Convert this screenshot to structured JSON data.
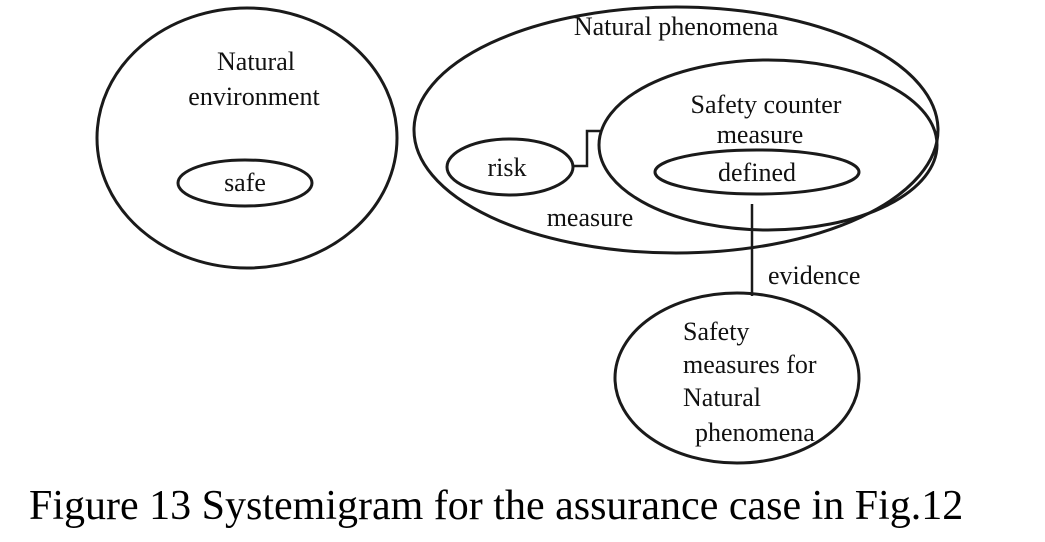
{
  "diagram": {
    "natural_environment": {
      "label_lines": [
        "Natural",
        "environment"
      ],
      "inner": "safe"
    },
    "natural_phenomena": {
      "label": "Natural phenomena",
      "risk": "risk",
      "measure": "measure",
      "safety_counter_measure": {
        "label_lines": [
          "Safety counter",
          "measure"
        ],
        "inner": "defined"
      }
    },
    "evidence": "evidence",
    "safety_measures": {
      "label_lines": [
        "Safety",
        "measures for",
        "Natural",
        "phenomena"
      ]
    }
  },
  "caption": "Figure 13 Systemigram for the assurance case in Fig.12"
}
